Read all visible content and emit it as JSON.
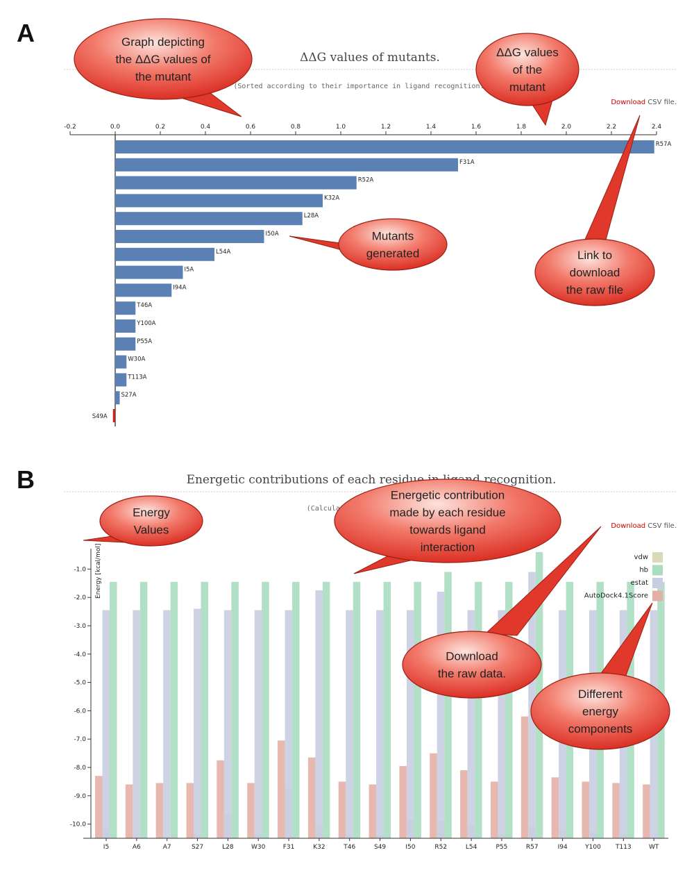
{
  "panel_a": {
    "letter": "A",
    "title": "ΔΔG values of mutants.",
    "subtitle": "(Sorted according to their importance in ligand recognition.)",
    "download": {
      "link": "Download",
      "rest": " CSV file."
    },
    "xticks": [
      "-0.2",
      "0.0",
      "0.2",
      "0.4",
      "0.6",
      "0.8",
      "1.0",
      "1.2",
      "1.4",
      "1.6",
      "1.8",
      "2.0",
      "2.2",
      "2.4"
    ]
  },
  "panel_b": {
    "letter": "B",
    "title": "Energetic contributions of each residue in ligand recognition.",
    "subtitle": "(Calculated after docking)",
    "download": {
      "link": "Download",
      "rest": " CSV file."
    },
    "ylabel": "Energy [kcal/mol]",
    "yticks": [
      "-1.0",
      "-2.0",
      "-3.0",
      "-4.0",
      "-5.0",
      "-6.0",
      "-7.0",
      "-8.0",
      "-9.0",
      "-10.0"
    ]
  },
  "chart_data": [
    {
      "type": "bar",
      "orientation": "horizontal",
      "title": "ΔΔG values of mutants.",
      "subtitle": "(Sorted according to their importance in ligand recognition.)",
      "xlim": [
        -0.2,
        2.4
      ],
      "categories": [
        "R57A",
        "F31A",
        "R52A",
        "K32A",
        "L28A",
        "I50A",
        "L54A",
        "I5A",
        "I94A",
        "T46A",
        "Y100A",
        "P55A",
        "W30A",
        "T113A",
        "S27A",
        "S49A"
      ],
      "values": [
        2.39,
        1.52,
        1.07,
        0.92,
        0.83,
        0.66,
        0.44,
        0.3,
        0.25,
        0.09,
        0.09,
        0.09,
        0.05,
        0.05,
        0.02,
        -0.01
      ],
      "colors": {
        "positive": "#5b80b4",
        "negative": "#cc2222"
      }
    },
    {
      "type": "bar",
      "title": "Energetic contributions of each residue in ligand recognition.",
      "subtitle": "(Calculated after docking)",
      "ylabel": "Energy [kcal/mol]",
      "ylim": [
        -10.5,
        -0.5
      ],
      "categories": [
        "I5",
        "A6",
        "A7",
        "S27",
        "L28",
        "W30",
        "F31",
        "K32",
        "T46",
        "S49",
        "I50",
        "R52",
        "L54",
        "P55",
        "R57",
        "I94",
        "Y100",
        "T113",
        "WT"
      ],
      "series": [
        {
          "name": "AutoDock4.1Score",
          "color": "#e3b0a6",
          "values": [
            -8.3,
            -8.6,
            -8.55,
            -8.55,
            -7.75,
            -8.55,
            -7.05,
            -7.65,
            -8.5,
            -8.6,
            -7.95,
            -7.5,
            -8.1,
            -8.5,
            -6.2,
            -8.35,
            -8.5,
            -8.55,
            -8.6
          ]
        },
        {
          "name": "estat",
          "color": "#c8cde2",
          "values": [
            -2.45,
            -2.45,
            -2.45,
            -2.4,
            -2.45,
            -2.45,
            -2.45,
            -1.75,
            -2.45,
            -2.45,
            -2.45,
            -1.8,
            -2.45,
            -2.45,
            -1.1,
            -2.45,
            -2.45,
            -2.45,
            -2.45
          ]
        },
        {
          "name": "hb",
          "color": "#a9ddc0",
          "values": [
            -1.45,
            -1.45,
            -1.45,
            -1.45,
            -1.45,
            -1.45,
            -1.45,
            -1.45,
            -1.45,
            -1.45,
            -1.45,
            -1.1,
            -1.45,
            -1.45,
            -0.4,
            -1.45,
            -1.45,
            -1.45,
            -1.45
          ]
        },
        {
          "name": "vdw",
          "color": "#d9dbb8",
          "values": [
            -10.15,
            -10.48,
            -10.45,
            -10.35,
            -9.65,
            -10.35,
            -8.75,
            -10.05,
            -10.35,
            -10.4,
            -9.85,
            -9.9,
            -10.05,
            -10.35,
            -10.1,
            -10.2,
            -10.3,
            -10.35,
            -10.48
          ]
        }
      ],
      "legend": [
        "vdw",
        "hb",
        "estat",
        "AutoDock4.1Score"
      ],
      "legend_position": "top-right"
    }
  ],
  "callouts": [
    {
      "id": "callout-graph",
      "lines": [
        "Graph depicting",
        "the ΔΔG values of",
        "the mutant"
      ]
    },
    {
      "id": "callout-ddg",
      "lines": [
        "ΔΔG values",
        "of the",
        "mutant"
      ]
    },
    {
      "id": "callout-mutants",
      "lines": [
        "Mutants",
        "generated"
      ]
    },
    {
      "id": "callout-link",
      "lines": [
        "Link to",
        "download",
        "the raw file"
      ]
    },
    {
      "id": "callout-energy",
      "lines": [
        "Energy",
        "Values"
      ]
    },
    {
      "id": "callout-contribution",
      "lines": [
        "Energetic contribution",
        "made by each residue",
        "towards ligand",
        "interaction"
      ]
    },
    {
      "id": "callout-download-raw",
      "lines": [
        "Download",
        "the raw data."
      ]
    },
    {
      "id": "callout-components",
      "lines": [
        "Different",
        "energy",
        "components"
      ]
    }
  ]
}
